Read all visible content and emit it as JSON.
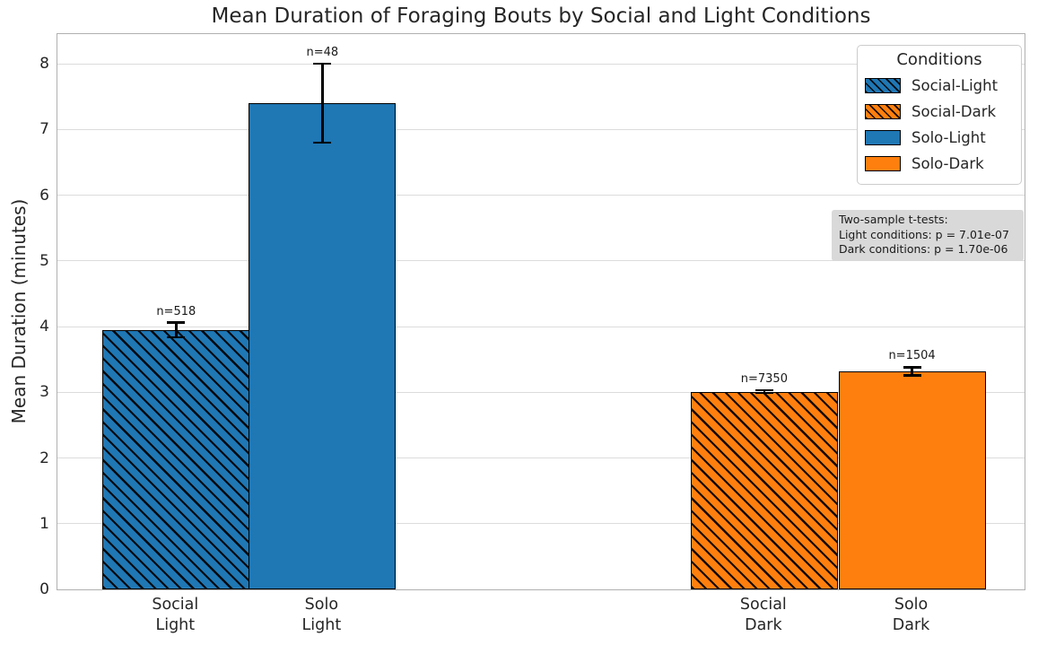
{
  "chart_data": {
    "type": "bar",
    "title": "Mean Duration of Foraging Bouts by Social and Light Conditions",
    "ylabel": "Mean Duration (minutes)",
    "xlabel": "",
    "ylim": [
      0,
      8.48
    ],
    "yticks": [
      0,
      1,
      2,
      3,
      4,
      5,
      6,
      7,
      8
    ],
    "grid": "horizontal",
    "colors": {
      "blue": "#1f77b4",
      "orange": "#ff7f0e"
    },
    "bars": [
      {
        "name": "social-light",
        "tick_lines": [
          "Social",
          "Light"
        ],
        "value": 3.95,
        "error": 0.11,
        "n_label": "n=518",
        "color": "#1f77b4",
        "hatched": true,
        "x_frac": 0.1225
      },
      {
        "name": "solo-light",
        "tick_lines": [
          "Solo",
          "Light"
        ],
        "value": 7.4,
        "error": 0.6,
        "n_label": "n=48",
        "color": "#1f77b4",
        "hatched": false,
        "x_frac": 0.2735
      },
      {
        "name": "social-dark",
        "tick_lines": [
          "Social",
          "Dark"
        ],
        "value": 3.01,
        "error": 0.02,
        "n_label": "n=7350",
        "color": "#ff7f0e",
        "hatched": true,
        "x_frac": 0.7295
      },
      {
        "name": "solo-dark",
        "tick_lines": [
          "Solo",
          "Dark"
        ],
        "value": 3.32,
        "error": 0.06,
        "n_label": "n=1504",
        "color": "#ff7f0e",
        "hatched": false,
        "x_frac": 0.882
      }
    ],
    "bar_width_frac": 0.1519,
    "legend": {
      "position": "upper-right",
      "title": "Conditions",
      "items": [
        {
          "label": "Social-Light",
          "color": "#1f77b4",
          "hatched": true
        },
        {
          "label": "Social-Dark",
          "color": "#ff7f0e",
          "hatched": true
        },
        {
          "label": "Solo-Light",
          "color": "#1f77b4",
          "hatched": false
        },
        {
          "label": "Solo-Dark",
          "color": "#ff7f0e",
          "hatched": false
        }
      ]
    },
    "annotation": {
      "lines": [
        "Two-sample t-tests:",
        "Light conditions: p = 7.01e-07",
        "Dark conditions: p = 1.70e-06"
      ]
    }
  }
}
